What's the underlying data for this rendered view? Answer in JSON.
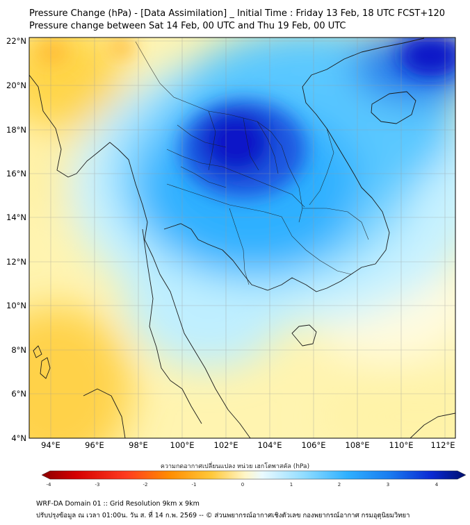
{
  "header": {
    "title": "Pressure Change (hPa) - [Data Assimilation] _ Initial Time : Friday 13 Feb, 18 UTC FCST+120",
    "subtitle": "Pressure change between Sat 14 Feb, 00 UTC and Thu 19 Feb, 00 UTC"
  },
  "map": {
    "lat_labels": [
      "22°N",
      "20°N",
      "18°N",
      "16°N",
      "14°N",
      "12°N",
      "10°N",
      "8°N",
      "6°N",
      "4°N"
    ],
    "lon_labels": [
      "94°E",
      "96°E",
      "98°E",
      "100°E",
      "102°E",
      "104°E",
      "106°E",
      "108°E",
      "110°E",
      "112°E"
    ],
    "lat_range": [
      4,
      22.3
    ],
    "lon_range": [
      93,
      112.5
    ],
    "colors": {
      "strong_fall": "#0a14c8",
      "fall": "#1fa6ff",
      "weak_fall": "#bfefff",
      "neutral": "#fffbe0",
      "rise": "#ffe066",
      "strong_rise": "#ffb833",
      "coast": "#1a1a1a"
    }
  },
  "colorbar": {
    "title": "ความกดอากาศเปลี่ยนแปลง หน่วย เฮกโตพาสคัล (hPa)",
    "ticks": [
      "-4",
      "-3",
      "-2",
      "-1",
      "0",
      "1",
      "2",
      "3",
      "4"
    ],
    "range": [
      -4,
      4
    ]
  },
  "footer": {
    "line1": "WRF-DA Domain 01 :: Grid Resolution 9km x 9km",
    "line2": "ปรับปรุงข้อมูล ณ เวลา 01:00น. วัน ส. ที่ 14 ก.พ. 2569 -- © ส่วนพยากรณ์อากาศเชิงตัวเลข กองพยากรณ์อากาศ กรมอุตุนิยมวิทยา"
  }
}
